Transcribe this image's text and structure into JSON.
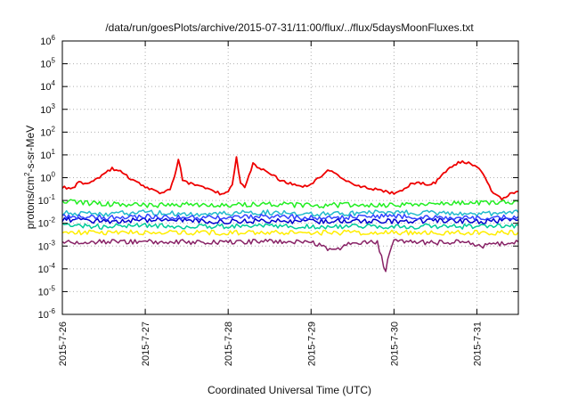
{
  "chart_data": {
    "type": "line",
    "title": "/data/run/goesPlots/archive/2015-07-31/11:00/flux/../flux/5daysMoonFluxes.txt",
    "xlabel": "Coordinated Universal Time (UTC)",
    "ylabel": "protons/cm2-s-sr-MeV",
    "ylabel_parts": {
      "pre": "protons/cm",
      "sup": "2",
      "post": "-s-sr-MeV"
    },
    "yscale": "log",
    "ylim": [
      1e-06,
      1000000.0
    ],
    "y_ticks": [
      {
        "value": 1e-06,
        "base": "10",
        "exp": "-6"
      },
      {
        "value": 1e-05,
        "base": "10",
        "exp": "-5"
      },
      {
        "value": 0.0001,
        "base": "10",
        "exp": "-4"
      },
      {
        "value": 0.001,
        "base": "10",
        "exp": "-3"
      },
      {
        "value": 0.01,
        "base": "10",
        "exp": "-2"
      },
      {
        "value": 0.1,
        "base": "10",
        "exp": "-1"
      },
      {
        "value": 1.0,
        "base": "10",
        "exp": "0"
      },
      {
        "value": 10.0,
        "base": "10",
        "exp": "1"
      },
      {
        "value": 100.0,
        "base": "10",
        "exp": "2"
      },
      {
        "value": 1000.0,
        "base": "10",
        "exp": "3"
      },
      {
        "value": 10000.0,
        "base": "10",
        "exp": "4"
      },
      {
        "value": 100000.0,
        "base": "10",
        "exp": "5"
      },
      {
        "value": 1000000.0,
        "base": "10",
        "exp": "6"
      }
    ],
    "x_range": [
      "2015-07-26 00:00",
      "2015-07-31 12:00"
    ],
    "x_ticks": [
      "2015-7-26",
      "2015-7-27",
      "2015-7-28",
      "2015-7-29",
      "2015-7-30",
      "2015-7-31"
    ],
    "grid": true,
    "series": [
      {
        "color": "#ee0000",
        "x": [
          0.0,
          0.1,
          0.2,
          0.3,
          0.4,
          0.5,
          0.6,
          0.7,
          0.8,
          0.9,
          1.0,
          1.1,
          1.2,
          1.3,
          1.35,
          1.4,
          1.45,
          1.5,
          1.6,
          1.7,
          1.8,
          1.9,
          2.0,
          2.05,
          2.1,
          2.15,
          2.2,
          2.3,
          2.4,
          2.5,
          2.6,
          2.7,
          2.8,
          2.9,
          3.0,
          3.1,
          3.2,
          3.3,
          3.4,
          3.5,
          3.6,
          3.7,
          3.8,
          3.9,
          4.0,
          4.1,
          4.2,
          4.3,
          4.4,
          4.5,
          4.6,
          4.7,
          4.8,
          4.9,
          5.0,
          5.1,
          5.2,
          5.3,
          5.4,
          5.5
        ],
        "y": [
          0.4,
          0.3,
          0.6,
          0.5,
          0.8,
          1.5,
          2.5,
          2.0,
          1.0,
          0.6,
          0.4,
          0.3,
          0.2,
          0.3,
          1.0,
          7.0,
          0.8,
          0.6,
          0.5,
          0.4,
          0.3,
          0.2,
          0.25,
          0.5,
          7.5,
          0.6,
          0.4,
          4.0,
          2.5,
          1.5,
          0.9,
          0.6,
          0.5,
          0.4,
          0.5,
          1.0,
          2.0,
          1.5,
          0.8,
          0.5,
          0.4,
          0.35,
          0.3,
          0.25,
          0.2,
          0.3,
          0.5,
          0.6,
          0.5,
          0.6,
          1.5,
          3.0,
          5.0,
          4.5,
          3.0,
          1.0,
          0.2,
          0.12,
          0.2,
          0.25
        ]
      },
      {
        "color": "#22ee22",
        "x": [
          0.0,
          0.5,
          1.0,
          1.5,
          2.0,
          2.5,
          3.0,
          3.5,
          4.0,
          4.5,
          5.0,
          5.5
        ],
        "y": [
          0.09,
          0.07,
          0.06,
          0.07,
          0.065,
          0.07,
          0.06,
          0.065,
          0.06,
          0.07,
          0.08,
          0.09
        ]
      },
      {
        "color": "#22bbcc",
        "x": [
          0.0,
          0.5,
          1.0,
          1.5,
          2.0,
          2.5,
          3.0,
          3.5,
          4.0,
          4.5,
          5.0,
          5.5
        ],
        "y": [
          0.03,
          0.025,
          0.03,
          0.025,
          0.028,
          0.03,
          0.025,
          0.028,
          0.03,
          0.028,
          0.025,
          0.03
        ]
      },
      {
        "color": "#0000cc",
        "x": [
          0.0,
          0.5,
          1.0,
          1.5,
          2.0,
          2.5,
          3.0,
          3.5,
          4.0,
          4.5,
          5.0,
          5.5
        ],
        "y": [
          0.015,
          0.012,
          0.014,
          0.013,
          0.012,
          0.013,
          0.012,
          0.013,
          0.012,
          0.013,
          0.012,
          0.014
        ]
      },
      {
        "color": "#3344ff",
        "x": [
          0.0,
          0.5,
          1.0,
          1.5,
          2.0,
          2.5,
          3.0,
          3.5,
          4.0,
          4.5,
          5.0,
          5.5
        ],
        "y": [
          0.02,
          0.018,
          0.02,
          0.018,
          0.019,
          0.02,
          0.018,
          0.019,
          0.02,
          0.018,
          0.017,
          0.02
        ]
      },
      {
        "color": "#00cc99",
        "x": [
          0.0,
          0.5,
          1.0,
          1.5,
          2.0,
          2.5,
          3.0,
          3.5,
          4.0,
          4.5,
          5.0,
          5.5
        ],
        "y": [
          0.008,
          0.007,
          0.008,
          0.007,
          0.0075,
          0.008,
          0.007,
          0.0075,
          0.007,
          0.0075,
          0.007,
          0.008
        ]
      },
      {
        "color": "#ffee00",
        "x": [
          0.0,
          0.5,
          1.0,
          1.5,
          2.0,
          2.5,
          3.0,
          3.5,
          4.0,
          4.5,
          5.0,
          5.5
        ],
        "y": [
          0.004,
          0.0038,
          0.004,
          0.0038,
          0.0039,
          0.004,
          0.0038,
          0.0039,
          0.004,
          0.0038,
          0.0039,
          0.004
        ]
      },
      {
        "color": "#882266",
        "x": [
          0.0,
          0.5,
          1.0,
          1.5,
          2.0,
          2.5,
          3.0,
          3.3,
          3.5,
          3.8,
          3.85,
          3.9,
          3.95,
          4.0,
          4.5,
          4.9,
          5.0,
          5.5
        ],
        "y": [
          0.0016,
          0.0015,
          0.0016,
          0.0015,
          0.0015,
          0.0016,
          0.0015,
          0.0006,
          0.0015,
          0.0015,
          0.0003,
          8e-05,
          0.0006,
          0.0015,
          0.0014,
          0.0015,
          0.0009,
          0.0015
        ]
      }
    ]
  }
}
